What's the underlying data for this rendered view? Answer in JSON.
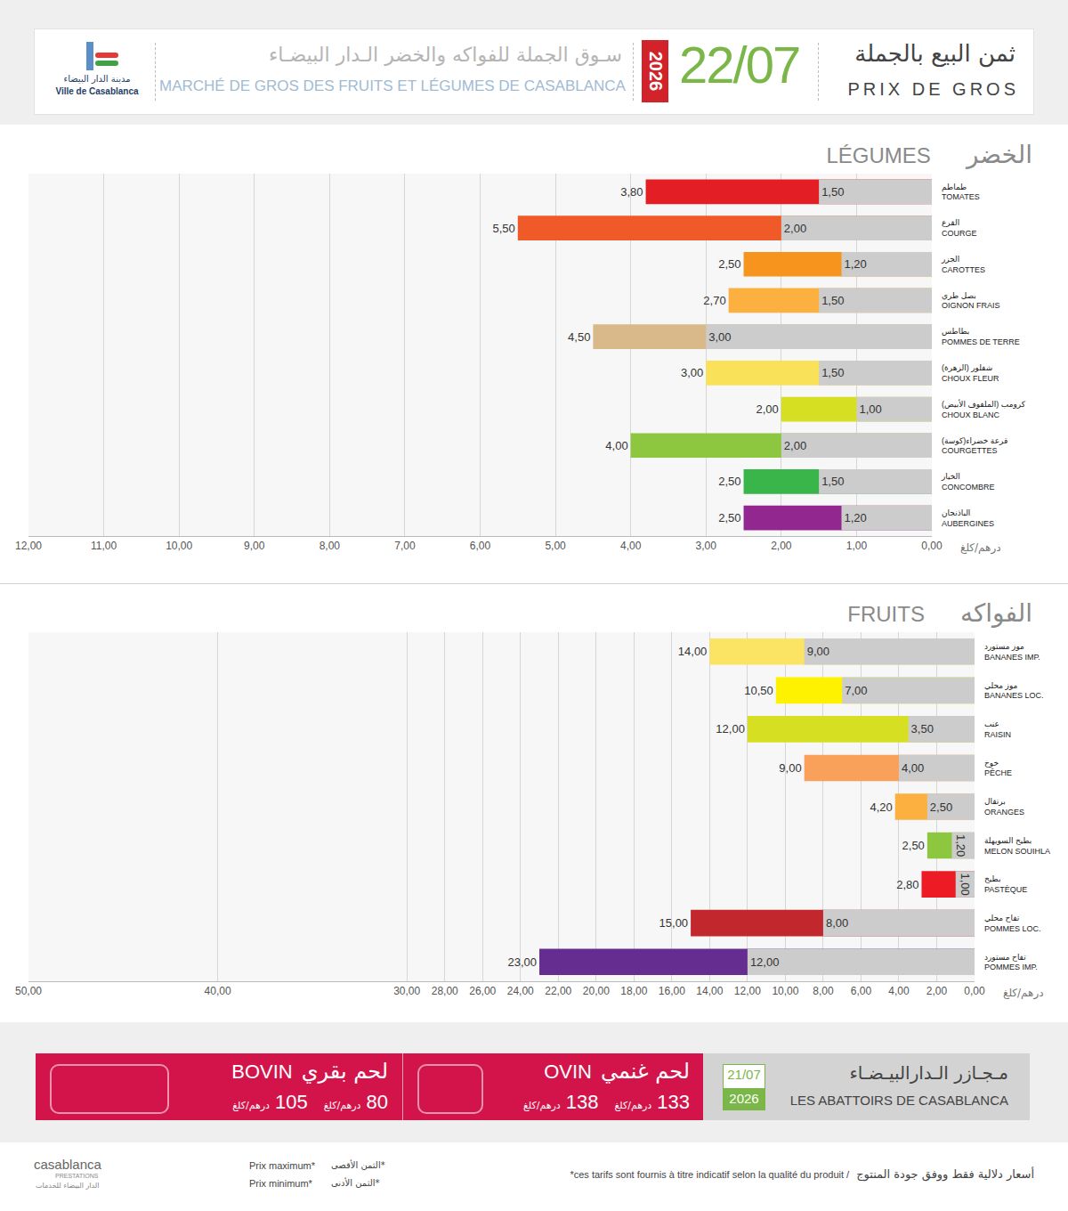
{
  "header": {
    "logo_ar": "مدينة الدار البيضاء",
    "logo_fr": "Ville de Casablanca",
    "title_ar": "سـوق الجملة للفواكه والخضر الـدار البيضـاء",
    "title_fr": "MARCHÉ DE GROS DES FRUITS ET LÉGUMES DE CASABLANCA",
    "year": "2026",
    "date": "22/07",
    "heading_ar": "ثمن البيع بالجملة",
    "heading_fr": "PRIX DE GROS"
  },
  "chart_data": [
    {
      "type": "bar",
      "title": "LÉGUMES",
      "subtitle": "الخضر",
      "xlabel": "درهم/كلغ",
      "orientation": "horizontal",
      "stacked": false,
      "data_labels": true,
      "grid": true,
      "categories": [
        "TOMATES",
        "COURGE",
        "CAROTTES",
        "OIGNON FRAIS",
        "POMMES DE TERRE",
        "CHOUX FLEUR",
        "CHOUX BLANC",
        "COURGETTES",
        "CONCOMBRE",
        "AUBERGINES"
      ],
      "categories_ar": [
        "طماطم",
        "القرع",
        "الجزر",
        "بصل طري",
        "بطاطس",
        "شفلور (الزهرة)",
        "كرومب (الملفوف الأبيض)",
        "قرعة خضراء(كوسة)",
        "الخيار",
        "الباذنجان"
      ],
      "series": [
        {
          "name": "Prix maximum*",
          "colors": [
            "#e31e24",
            "#f05a28",
            "#f7941d",
            "#fbb040",
            "#d9b98a",
            "#f9e15a",
            "#d7df23",
            "#8dc63f",
            "#39b54a",
            "#92278f"
          ],
          "values": [
            3.8,
            5.5,
            2.5,
            2.7,
            4.5,
            3.0,
            2.0,
            4.0,
            2.5,
            2.5
          ],
          "value_labels": [
            "3,80",
            "5,50",
            "2,50",
            "2,70",
            "4,50",
            "3,00",
            "2,00",
            "4,00",
            "2,50",
            "2,50"
          ]
        },
        {
          "name": "Prix minimum*",
          "color": "#cccccc",
          "values": [
            1.5,
            2.0,
            1.2,
            1.5,
            3.0,
            1.5,
            1.0,
            2.0,
            1.5,
            1.2
          ],
          "value_labels": [
            "1,50",
            "2,00",
            "1,20",
            "1,50",
            "3,00",
            "1,50",
            "1,00",
            "2,00",
            "1,50",
            "1,20"
          ]
        }
      ],
      "xlim": [
        0,
        12
      ],
      "xticks": [
        {
          "value": 0,
          "label": "0,00"
        },
        {
          "value": 1,
          "label": "1,00"
        },
        {
          "value": 2,
          "label": "2,00"
        },
        {
          "value": 3,
          "label": "3,00"
        },
        {
          "value": 4,
          "label": "4,00"
        },
        {
          "value": 5,
          "label": "5,00"
        },
        {
          "value": 6,
          "label": "6,00"
        },
        {
          "value": 7,
          "label": "7,00"
        },
        {
          "value": 8,
          "label": "8,00"
        },
        {
          "value": 9,
          "label": "9,00"
        },
        {
          "value": 10,
          "label": "10,00"
        },
        {
          "value": 11,
          "label": "11,00"
        },
        {
          "value": 12,
          "label": "12,00"
        }
      ]
    },
    {
      "type": "bar",
      "title": "FRUITS",
      "subtitle": "الفواكه",
      "xlabel": "درهم/كلغ",
      "orientation": "horizontal",
      "stacked": false,
      "data_labels": true,
      "grid": true,
      "categories": [
        "BANANES IMP.",
        "BANANES LOC.",
        "RAISIN",
        "PÊCHE",
        "ORANGES",
        "MELON SOUIHLA",
        "PASTÈQUE",
        "POMMES LOC.",
        "POMMES IMP."
      ],
      "categories_ar": [
        "موز مستورد",
        "موز محلي",
        "عنب",
        "خوخ",
        "برتقال",
        "بطيخ السويهلة",
        "بطيخ",
        "تفاح محلي",
        "تفاح مستورد"
      ],
      "series": [
        {
          "name": "Prix maximum*",
          "colors": [
            "#fbe463",
            "#fff200",
            "#d7df23",
            "#f9a05a",
            "#fbb040",
            "#8dc63f",
            "#ed1c24",
            "#c1272d",
            "#662d91"
          ],
          "values": [
            14.0,
            10.5,
            12.0,
            9.0,
            4.2,
            2.5,
            2.8,
            15.0,
            23.0
          ],
          "value_labels": [
            "14,00",
            "10,50",
            "12,00",
            "9,00",
            "4,20",
            "2,50",
            "2,80",
            "15,00",
            "23,00"
          ]
        },
        {
          "name": "Prix minimum*",
          "color": "#cccccc",
          "values": [
            9.0,
            7.0,
            3.5,
            4.0,
            2.5,
            1.2,
            1.0,
            8.0,
            12.0
          ],
          "value_labels": [
            "9,00",
            "7,00",
            "3,50",
            "4,00",
            "2,50",
            "1,20",
            "1,00",
            "8,00",
            "12,00"
          ]
        }
      ],
      "xlim": [
        0,
        50
      ],
      "xticks": [
        {
          "value": 0,
          "label": "0,00"
        },
        {
          "value": 2,
          "label": "2,00"
        },
        {
          "value": 4,
          "label": "4,00"
        },
        {
          "value": 6,
          "label": "6,00"
        },
        {
          "value": 8,
          "label": "8,00"
        },
        {
          "value": 10,
          "label": "10,00"
        },
        {
          "value": 12,
          "label": "12,00"
        },
        {
          "value": 14,
          "label": "14,00"
        },
        {
          "value": 16,
          "label": "16,00"
        },
        {
          "value": 18,
          "label": "18,00"
        },
        {
          "value": 20,
          "label": "20,00"
        },
        {
          "value": 22,
          "label": "22,00"
        },
        {
          "value": 24,
          "label": "24,00"
        },
        {
          "value": 26,
          "label": "26,00"
        },
        {
          "value": 28,
          "label": "28,00"
        },
        {
          "value": 30,
          "label": "30,00"
        },
        {
          "value": 40,
          "label": "40,00"
        },
        {
          "value": 50,
          "label": "50,00"
        }
      ]
    }
  ],
  "abattoirs": {
    "title_ar": "مـجـازر الـدارالبيـضـاء",
    "title_fr": "LES ABATTOIRS DE CASABLANCA",
    "date": "21/07",
    "year": "2026",
    "items": [
      {
        "fr": "BOVIN",
        "ar": "لحم بقري",
        "max": 105,
        "min": 80,
        "unit": "درهم/كلغ"
      },
      {
        "fr": "OVIN",
        "ar": "لحم غنمي",
        "max": 138,
        "min": 133,
        "unit": "درهم/كلغ"
      }
    ]
  },
  "footer": {
    "logo": "casablanca",
    "logo_sub": "PRESTATIONS",
    "logo_ar": "الدار البيضاء للخدمات",
    "max_ar": "*الثمن الأقصى",
    "min_ar": "*الثمن الأدنى",
    "note_fr": "*ces tarifs sont fournis à titre indicatif selon la qualité du produit /",
    "note_ar": "أسعار دلالية فقط ووفق جودة المنتوج"
  }
}
